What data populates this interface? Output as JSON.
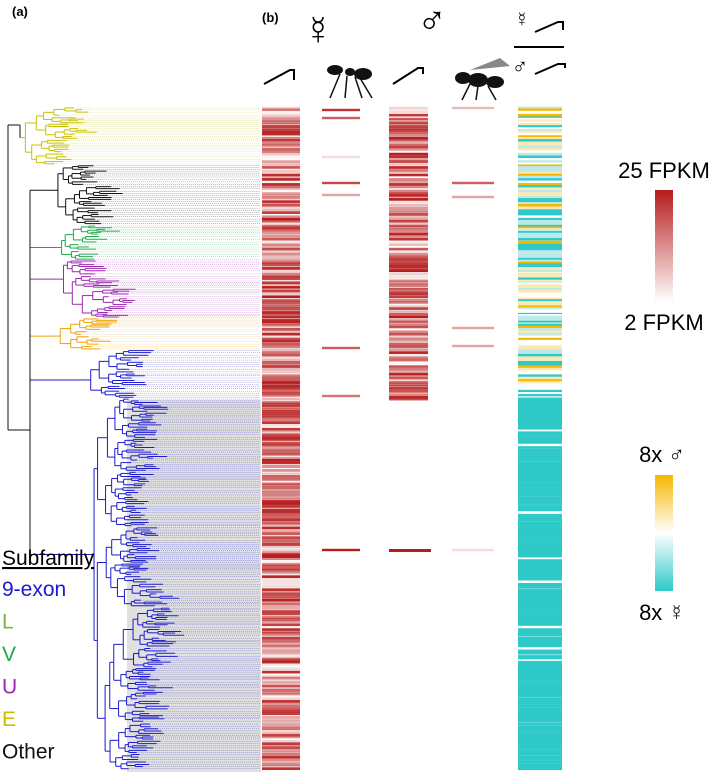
{
  "panels": {
    "a": "(a)",
    "b": "(b)"
  },
  "columns": {
    "worker_symbol": "☿",
    "male_symbol": "♂",
    "ratio_top": "☿",
    "ratio_bottom": "♂"
  },
  "scale_expression": {
    "max": "25 FPKM",
    "min": "2 FPKM"
  },
  "scale_bias": {
    "male": "8x ♂",
    "worker": "8x ☿"
  },
  "legend": {
    "title": "Subfamily",
    "items": [
      "9-exon",
      "L",
      "V",
      "U",
      "E",
      "Other"
    ]
  }
}
